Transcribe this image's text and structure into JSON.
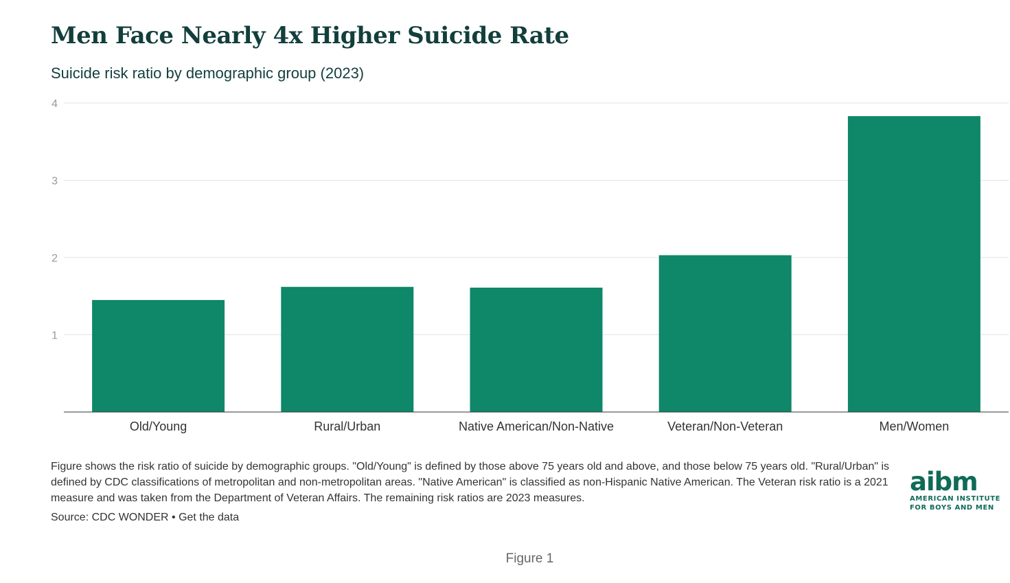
{
  "header": {
    "title": "Men Face Nearly 4x Higher Suicide Rate",
    "subtitle": "Suicide risk ratio by demographic group (2023)"
  },
  "chart_data": {
    "type": "bar",
    "categories": [
      "Old/Young",
      "Rural/Urban",
      "Native American/Non-Native",
      "Veteran/Non-Veteran",
      "Men/Women"
    ],
    "values": [
      1.45,
      1.62,
      1.61,
      2.03,
      3.83
    ],
    "title": "Men Face Nearly 4x Higher Suicide Rate",
    "subtitle": "Suicide risk ratio by demographic group (2023)",
    "xlabel": "",
    "ylabel": "",
    "ylim": [
      0,
      4
    ],
    "yticks": [
      1,
      2,
      3,
      4
    ],
    "grid": true,
    "bar_color": "#0f8769"
  },
  "footer": {
    "notes": "Figure shows the risk ratio of suicide by demographic groups. \"Old/Young\" is defined by those above 75 years old and above, and those below 75 years old. \"Rural/Urban\" is defined by CDC classifications of metropolitan and non-metropolitan areas. \"Native American\" is classified as non-Hispanic Native American. The Veteran risk ratio is a 2021 measure and was taken from the Department of Veteran Affairs. The remaining risk ratios are 2023 measures.",
    "source_prefix": "Source: CDC WONDER",
    "separator": " • ",
    "data_link": "Get the data"
  },
  "logo": {
    "mark": "aibm",
    "line1": "AMERICAN INSTITUTE",
    "line2": "FOR BOYS AND MEN"
  },
  "caption": "Figure 1",
  "colors": {
    "accent": "#0f8769",
    "title": "#123f3c",
    "logo": "#0f6b57"
  }
}
